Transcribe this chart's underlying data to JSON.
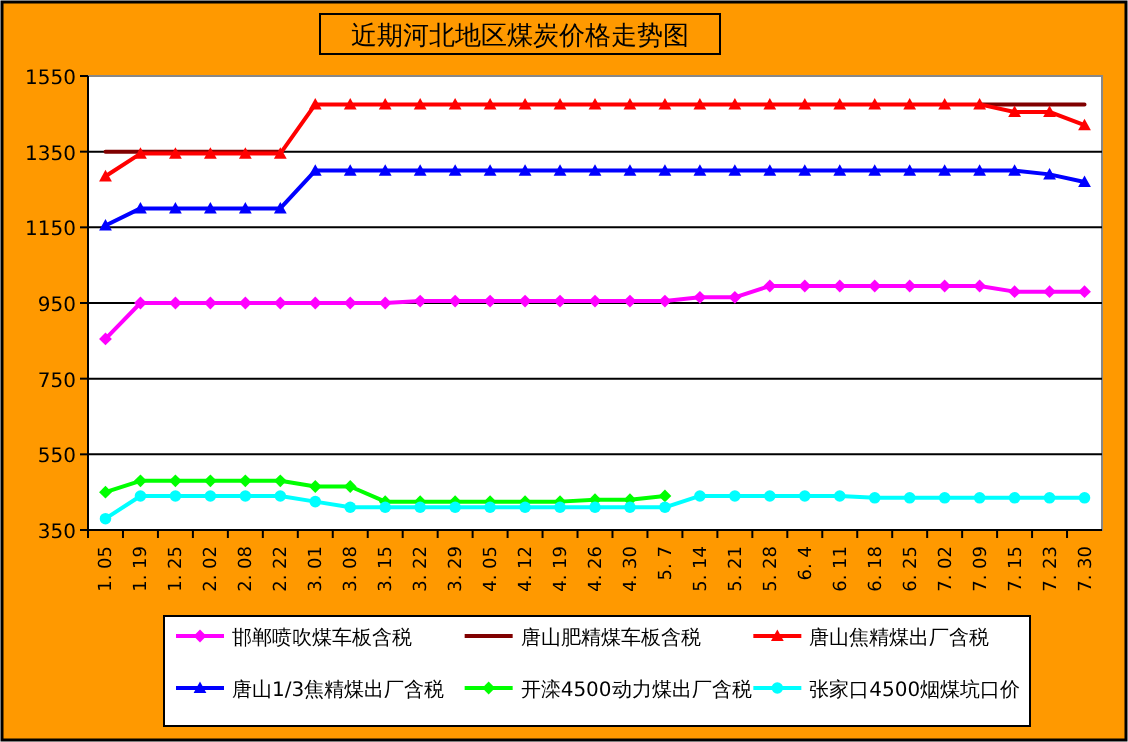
{
  "chart_data": {
    "type": "line",
    "title": "近期河北地区煤炭价格走势图",
    "categories": [
      "1. 05",
      "1. 19",
      "1. 25",
      "2. 02",
      "2. 08",
      "2. 22",
      "3. 01",
      "3. 08",
      "3. 15",
      "3. 22",
      "3. 29",
      "4. 05",
      "4. 12",
      "4. 19",
      "4. 26",
      "4. 30",
      "5. 7",
      "5. 14",
      "5. 21",
      "5. 28",
      "6. 4",
      "6. 11",
      "6. 18",
      "6. 25",
      "7. 02",
      "7. 09",
      "7. 15",
      "7. 23",
      "7. 30"
    ],
    "series": [
      {
        "name": "邯郸喷吹煤车板含税",
        "color": "#ff00ff",
        "marker": "diamond",
        "values": [
          855,
          950,
          950,
          950,
          950,
          950,
          950,
          950,
          950,
          955,
          955,
          955,
          955,
          955,
          955,
          955,
          955,
          965,
          965,
          995,
          995,
          995,
          995,
          995,
          995,
          995,
          980,
          980,
          980
        ]
      },
      {
        "name": "唐山肥精煤车板含税",
        "color": "#800000",
        "marker": "none",
        "values": [
          1350,
          1350,
          1350,
          1350,
          1350,
          1350,
          null,
          null,
          null,
          null,
          null,
          null,
          null,
          null,
          null,
          null,
          null,
          null,
          null,
          null,
          null,
          null,
          null,
          null,
          null,
          1475,
          1475,
          1475,
          1475
        ]
      },
      {
        "name": "唐山焦精煤出厂含税",
        "color": "#ff0000",
        "marker": "triangle",
        "values": [
          1285,
          1345,
          1345,
          1345,
          1345,
          1345,
          1475,
          1475,
          1475,
          1475,
          1475,
          1475,
          1475,
          1475,
          1475,
          1475,
          1475,
          1475,
          1475,
          1475,
          1475,
          1475,
          1475,
          1475,
          1475,
          1475,
          1455,
          1455,
          1420
        ]
      },
      {
        "name": "唐山1/3焦精煤出厂含税",
        "color": "#0000ff",
        "marker": "triangle",
        "values": [
          1155,
          1200,
          1200,
          1200,
          1200,
          1200,
          1300,
          1300,
          1300,
          1300,
          1300,
          1300,
          1300,
          1300,
          1300,
          1300,
          1300,
          1300,
          1300,
          1300,
          1300,
          1300,
          1300,
          1300,
          1300,
          1300,
          1300,
          1290,
          1270
        ]
      },
      {
        "name": "开滦4500动力煤出厂含税",
        "color": "#00ff00",
        "marker": "diamond",
        "values": [
          450,
          480,
          480,
          480,
          480,
          480,
          465,
          465,
          425,
          425,
          425,
          425,
          425,
          425,
          430,
          430,
          440,
          null,
          null,
          null,
          null,
          null,
          null,
          null,
          null,
          null,
          null,
          null,
          null
        ]
      },
      {
        "name": "张家口4500烟煤坑口价",
        "color": "#00ffff",
        "marker": "circle",
        "values": [
          380,
          440,
          440,
          440,
          440,
          440,
          425,
          410,
          410,
          410,
          410,
          410,
          410,
          410,
          410,
          410,
          410,
          440,
          440,
          440,
          440,
          440,
          435,
          435,
          435,
          435,
          435,
          435,
          435
        ]
      }
    ],
    "ylim": [
      350,
      1550
    ],
    "yticks": [
      350,
      550,
      750,
      950,
      1150,
      1350,
      1550
    ],
    "grid": "y",
    "legend": "bottom"
  }
}
